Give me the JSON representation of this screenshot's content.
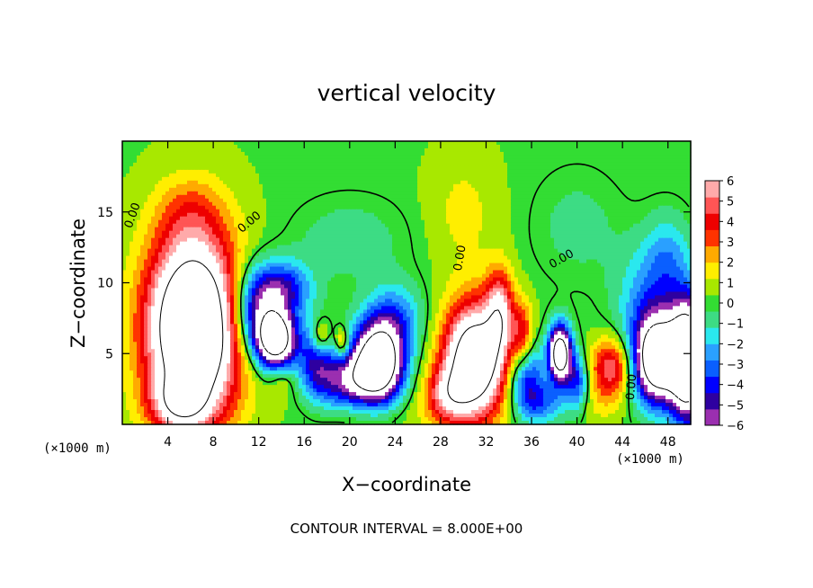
{
  "chart_data": {
    "type": "heatmap",
    "title": "vertical velocity",
    "xlabel": "X−coordinate",
    "ylabel": "Z−coordinate",
    "x_unit": "(×1000 m)",
    "z_unit": "(×1000 m)",
    "xlim": [
      0,
      50
    ],
    "ylim": [
      0,
      20
    ],
    "x_ticks": [
      4,
      8,
      12,
      16,
      20,
      24,
      28,
      32,
      36,
      40,
      44,
      48
    ],
    "y_ticks": [
      5,
      10,
      15
    ],
    "x_tick_labels": [
      "4",
      "8",
      "12",
      "16",
      "20",
      "24",
      "28",
      "32",
      "36",
      "40",
      "44",
      "48"
    ],
    "y_tick_labels": [
      "5",
      "10",
      "15"
    ],
    "colorbar": {
      "levels": [
        "6",
        "5",
        "4",
        "3",
        "2",
        "1",
        "0",
        "−1",
        "−2",
        "−3",
        "−4",
        "−5",
        "−6"
      ],
      "range": [
        -6,
        6
      ],
      "colors": [
        "#9b2fb0",
        "#2e00a0",
        "#0000ff",
        "#0a5fff",
        "#2aa0ff",
        "#2ae8ee",
        "#3ddc84",
        "#33dd33",
        "#a8e800",
        "#ffee00",
        "#ffaa00",
        "#ff3300",
        "#ee0000",
        "#ff5555",
        "#ffaaaa"
      ]
    },
    "background_value": 0.3,
    "features": [
      {
        "x": 6.2,
        "z": 6.8,
        "rx": 4.0,
        "rz": 6.4,
        "amp": 13
      },
      {
        "x": 5.0,
        "z": 1.5,
        "rx": 2.5,
        "rz": 1.8,
        "amp": 4
      },
      {
        "x": 11.5,
        "z": 8.0,
        "rx": 2.0,
        "rz": 3.0,
        "amp": -5
      },
      {
        "x": 14.0,
        "z": 9.5,
        "rx": 2.5,
        "rz": 2.0,
        "amp": -5
      },
      {
        "x": 13.5,
        "z": 6.0,
        "rx": 1.8,
        "rz": 2.0,
        "amp": -11
      },
      {
        "x": 17.0,
        "z": 4.5,
        "rx": 1.5,
        "rz": 2.5,
        "amp": -4
      },
      {
        "x": 19.5,
        "z": 3.0,
        "rx": 2.5,
        "rz": 2.0,
        "amp": -5
      },
      {
        "x": 17.5,
        "z": 6.2,
        "rx": 0.8,
        "rz": 1.2,
        "amp": 3
      },
      {
        "x": 19.3,
        "z": 5.8,
        "rx": 0.6,
        "rz": 1.0,
        "amp": 3
      },
      {
        "x": 22.5,
        "z": 4.3,
        "rx": 2.2,
        "rz": 2.8,
        "amp": -12
      },
      {
        "x": 24.0,
        "z": 7.5,
        "rx": 2.5,
        "rz": 2.5,
        "amp": -3
      },
      {
        "x": 22.0,
        "z": 0.8,
        "rx": 4.0,
        "rz": 1.5,
        "amp": 1
      },
      {
        "x": 31.0,
        "z": 4.5,
        "rx": 2.7,
        "rz": 4.0,
        "amp": 11
      },
      {
        "x": 28.5,
        "z": 2.0,
        "rx": 2.0,
        "rz": 2.0,
        "amp": 4
      },
      {
        "x": 33.2,
        "z": 8.0,
        "rx": 1.2,
        "rz": 3.0,
        "amp": 5
      },
      {
        "x": 35.2,
        "z": 6.0,
        "rx": 1.0,
        "rz": 2.5,
        "amp": 4
      },
      {
        "x": 35.5,
        "z": 3.5,
        "rx": 1.5,
        "rz": 2.5,
        "amp": -5
      },
      {
        "x": 38.5,
        "z": 5.0,
        "rx": 1.0,
        "rz": 2.0,
        "amp": -11
      },
      {
        "x": 37.0,
        "z": 1.5,
        "rx": 2.0,
        "rz": 1.5,
        "amp": -3
      },
      {
        "x": 40.0,
        "z": 3.0,
        "rx": 1.0,
        "rz": 2.0,
        "amp": -4
      },
      {
        "x": 43.0,
        "z": 4.0,
        "rx": 1.8,
        "rz": 2.0,
        "amp": 5
      },
      {
        "x": 42.0,
        "z": 1.5,
        "rx": 2.0,
        "rz": 1.5,
        "amp": 1
      },
      {
        "x": 47.0,
        "z": 4.5,
        "rx": 2.0,
        "rz": 3.0,
        "amp": -11
      },
      {
        "x": 49.8,
        "z": 4.5,
        "rx": 1.6,
        "rz": 4.0,
        "amp": -13
      },
      {
        "x": 46.5,
        "z": 8.5,
        "rx": 3.0,
        "rz": 4.0,
        "amp": -3
      },
      {
        "x": 48.0,
        "z": 12.0,
        "rx": 2.0,
        "rz": 3.0,
        "amp": -2
      },
      {
        "x": 6.0,
        "z": 15.0,
        "rx": 3.0,
        "rz": 2.5,
        "amp": 1.5
      },
      {
        "x": 30.0,
        "z": 15.0,
        "rx": 3.0,
        "rz": 4.0,
        "amp": 1.2
      },
      {
        "x": 20.0,
        "z": 13.0,
        "rx": 5.0,
        "rz": 3.0,
        "amp": -1.2
      },
      {
        "x": 40.0,
        "z": 14.0,
        "rx": 4.0,
        "rz": 4.0,
        "amp": -1.0
      },
      {
        "x": 14.0,
        "z": 3.0,
        "rx": 1.0,
        "rz": 1.2,
        "amp": 1.2
      }
    ],
    "contour_labels": [
      {
        "text": "0.00",
        "x": 0.8,
        "z": 13.8,
        "angle": -70
      },
      {
        "text": "0.00",
        "x": 10.5,
        "z": 13.5,
        "angle": -40
      },
      {
        "text": "0.00",
        "x": 29.8,
        "z": 10.8,
        "angle": -80
      },
      {
        "text": "0.00",
        "x": 37.8,
        "z": 11.0,
        "angle": -30
      },
      {
        "text": "0.00",
        "x": 45.0,
        "z": 1.7,
        "angle": -85
      }
    ],
    "footer": "CONTOUR INTERVAL = 8.000E+00"
  }
}
